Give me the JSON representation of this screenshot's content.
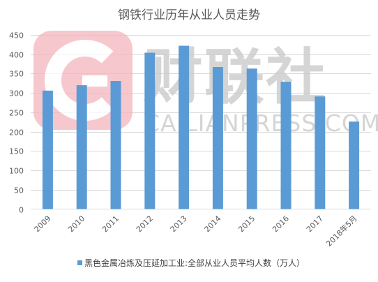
{
  "chart_data": {
    "type": "bar",
    "title": "钢铁行业历年从业人员走势",
    "categories": [
      "2009",
      "2010",
      "2011",
      "2012",
      "2013",
      "2014",
      "2015",
      "2016",
      "2017",
      "2018年5月"
    ],
    "series": [
      {
        "name": "黑色金属冶炼及压延加工业:全部从业人员平均人数（万人）",
        "values": [
          306,
          320,
          331,
          404,
          422,
          367,
          363,
          329,
          291,
          226
        ]
      }
    ],
    "xlabel": "",
    "ylabel": "",
    "ylim": [
      0,
      450
    ],
    "yticks": [
      0,
      50,
      100,
      150,
      200,
      250,
      300,
      350,
      400,
      450
    ],
    "grid": true,
    "legend_position": "bottom",
    "bar_color": "#5b9bd5"
  },
  "watermark": {
    "brand": "财联社",
    "site": "CAILIANPRESS.COM",
    "logo_color": "#f4b6bd",
    "text_color": "#c8c8c8"
  }
}
